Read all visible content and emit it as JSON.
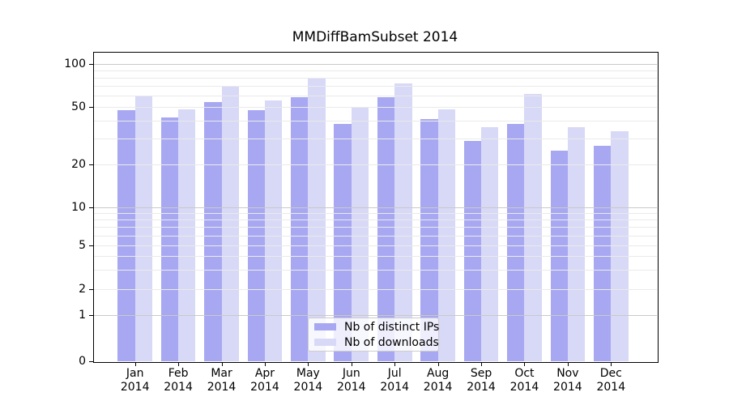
{
  "title": "MMDiffBamSubset 2014",
  "chart_data": {
    "type": "bar",
    "title": "MMDiffBamSubset 2014",
    "categories": [
      "Jan 2014",
      "Feb 2014",
      "Mar 2014",
      "Apr 2014",
      "May 2014",
      "Jun 2014",
      "Jul 2014",
      "Aug 2014",
      "Sep 2014",
      "Oct 2014",
      "Nov 2014",
      "Dec 2014"
    ],
    "month_labels": [
      "Jan",
      "Feb",
      "Mar",
      "Apr",
      "May",
      "Jun",
      "Jul",
      "Aug",
      "Sep",
      "Oct",
      "Nov",
      "Dec"
    ],
    "year_label": "2014",
    "series": [
      {
        "name": "Nb of distinct IPs",
        "color": "#a8a8f2",
        "values": [
          47,
          42,
          54,
          47,
          58,
          38,
          58,
          41,
          29,
          38,
          25,
          27
        ]
      },
      {
        "name": "Nb of downloads",
        "color": "#d8d8f7",
        "values": [
          60,
          48,
          70,
          55,
          80,
          49,
          73,
          48,
          36,
          61,
          36,
          34
        ]
      }
    ],
    "y_ticks": [
      0,
      1,
      2,
      5,
      10,
      20,
      50,
      100
    ],
    "y_minor_gridlines": [
      2,
      3,
      4,
      5,
      6,
      7,
      8,
      9,
      20,
      30,
      40,
      50,
      60,
      70,
      80,
      90
    ],
    "y_major_gridlines": [
      1,
      10,
      100
    ],
    "y_scale": "symlog",
    "ylim_top_value": 120,
    "grid": "horizontal",
    "legend": {
      "position": "lower center",
      "entries": [
        "Nb of distinct IPs",
        "Nb of downloads"
      ]
    }
  }
}
